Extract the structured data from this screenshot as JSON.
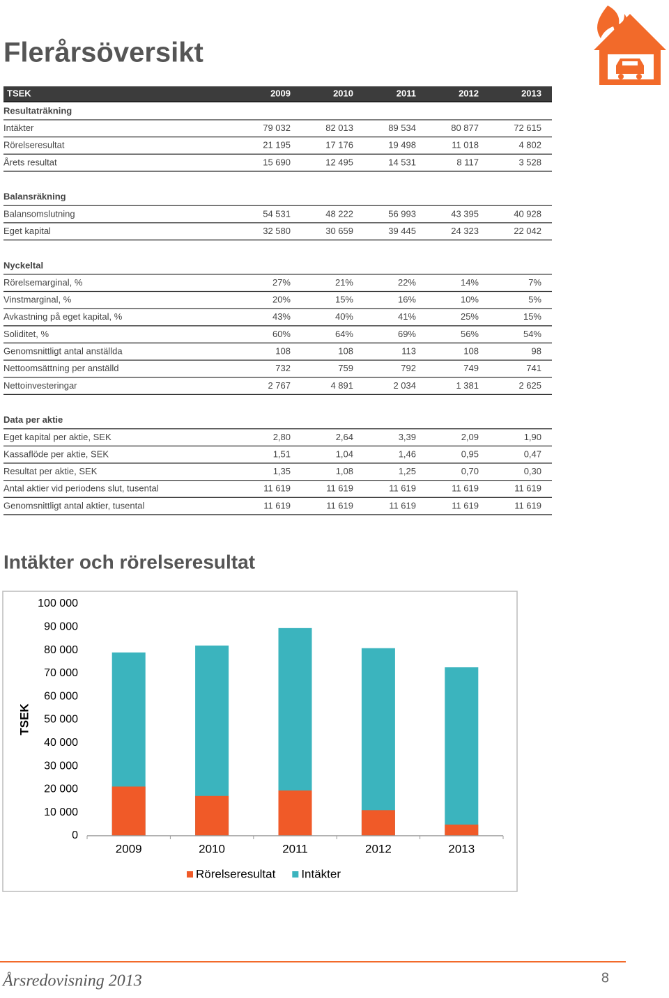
{
  "header": {
    "title": "Flerårsöversikt"
  },
  "table": {
    "columns": [
      "TSEK",
      "2009",
      "2010",
      "2011",
      "2012",
      "2013"
    ],
    "sections": [
      {
        "title": "Resultaträkning",
        "rows": [
          {
            "label": "Intäkter",
            "values": [
              "79 032",
              "82 013",
              "89 534",
              "80 877",
              "72 615"
            ]
          },
          {
            "label": "Rörelseresultat",
            "values": [
              "21 195",
              "17 176",
              "19 498",
              "11 018",
              "4 802"
            ]
          },
          {
            "label": "Årets resultat",
            "values": [
              "15 690",
              "12 495",
              "14 531",
              "8 117",
              "3 528"
            ]
          }
        ]
      },
      {
        "title": "Balansräkning",
        "rows": [
          {
            "label": "Balansomslutning",
            "values": [
              "54 531",
              "48 222",
              "56 993",
              "43 395",
              "40 928"
            ]
          },
          {
            "label": "Eget kapital",
            "values": [
              "32 580",
              "30 659",
              "39 445",
              "24 323",
              "22 042"
            ]
          }
        ]
      },
      {
        "title": "Nyckeltal",
        "rows": [
          {
            "label": "Rörelsemarginal, %",
            "values": [
              "27%",
              "21%",
              "22%",
              "14%",
              "7%"
            ]
          },
          {
            "label": "Vinstmarginal, %",
            "values": [
              "20%",
              "15%",
              "16%",
              "10%",
              "5%"
            ]
          },
          {
            "label": "Avkastning på eget kapital, %",
            "values": [
              "43%",
              "40%",
              "41%",
              "25%",
              "15%"
            ]
          },
          {
            "label": "Soliditet, %",
            "values": [
              "60%",
              "64%",
              "69%",
              "56%",
              "54%"
            ]
          },
          {
            "label": "Genomsnittligt antal anställda",
            "values": [
              "108",
              "108",
              "113",
              "108",
              "98"
            ]
          },
          {
            "label": "Nettoomsättning per anställd",
            "values": [
              "732",
              "759",
              "792",
              "749",
              "741"
            ]
          },
          {
            "label": "Nettoinvesteringar",
            "values": [
              "2 767",
              "4 891",
              "2 034",
              "1 381",
              "2 625"
            ]
          }
        ]
      },
      {
        "title": "Data per aktie",
        "rows": [
          {
            "label": "Eget kapital per aktie, SEK",
            "values": [
              "2,80",
              "2,64",
              "3,39",
              "2,09",
              "1,90"
            ]
          },
          {
            "label": "Kassaflöde per aktie, SEK",
            "values": [
              "1,51",
              "1,04",
              "1,46",
              "0,95",
              "0,47"
            ]
          },
          {
            "label": "Resultat per aktie, SEK",
            "values": [
              "1,35",
              "1,08",
              "1,25",
              "0,70",
              "0,30"
            ]
          },
          {
            "label": "Antal aktier vid periodens slut, tusental",
            "values": [
              "11 619",
              "11 619",
              "11 619",
              "11 619",
              "11 619"
            ]
          },
          {
            "label": "Genomsnittligt antal aktier, tusental",
            "values": [
              "11 619",
              "11 619",
              "11 619",
              "11 619",
              "11 619"
            ]
          }
        ]
      }
    ]
  },
  "chart_title": "Intäkter och rörelseresultat",
  "chart_data": {
    "type": "bar",
    "y_label": "TSEK",
    "categories": [
      "2009",
      "2010",
      "2011",
      "2012",
      "2013"
    ],
    "series": [
      {
        "name": "Rörelseresultat",
        "color": "#f05a28",
        "values": [
          21195,
          17176,
          19498,
          11018,
          4802
        ]
      },
      {
        "name": "Intäkter",
        "color": "#3bb4be",
        "values": [
          79032,
          82013,
          89534,
          80877,
          72615
        ]
      }
    ],
    "ylim": [
      0,
      100000
    ],
    "yticks": [
      {
        "value": 0,
        "label": "0"
      },
      {
        "value": 10000,
        "label": "10 000"
      },
      {
        "value": 20000,
        "label": "20 000"
      },
      {
        "value": 30000,
        "label": "30 000"
      },
      {
        "value": 40000,
        "label": "40 000"
      },
      {
        "value": 50000,
        "label": "50 000"
      },
      {
        "value": 60000,
        "label": "60 000"
      },
      {
        "value": 70000,
        "label": "70 000"
      },
      {
        "value": 80000,
        "label": "80 000"
      },
      {
        "value": 90000,
        "label": "90 000"
      },
      {
        "value": 100000,
        "label": "100 000"
      }
    ],
    "legend": "bottom"
  },
  "footer": {
    "text": "Årsredovisning 2013",
    "page": "8"
  }
}
